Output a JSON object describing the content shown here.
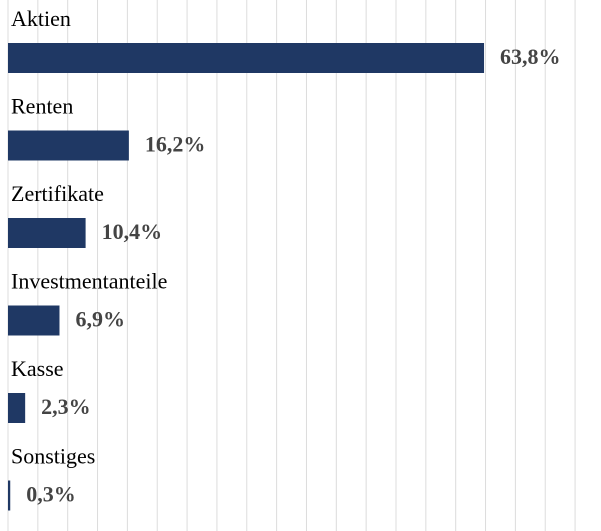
{
  "chart_data": {
    "type": "bar",
    "orientation": "horizontal",
    "categories": [
      "Aktien",
      "Renten",
      "Zertifikate",
      "Investmentanteile",
      "Kasse",
      "Sonstiges"
    ],
    "values": [
      63.8,
      16.2,
      10.4,
      6.9,
      2.3,
      0.3
    ],
    "value_labels": [
      "63,8%",
      "16,2%",
      "10,4%",
      "6,9%",
      "2,3%",
      "0,3%"
    ],
    "color": "#1f3864",
    "xlim": [
      0,
      78
    ],
    "xticks": [
      0,
      4,
      8,
      12,
      16,
      20,
      24,
      28,
      32,
      36,
      40,
      44,
      48,
      52,
      56,
      60,
      64,
      68,
      72,
      76
    ],
    "grid": true
  }
}
